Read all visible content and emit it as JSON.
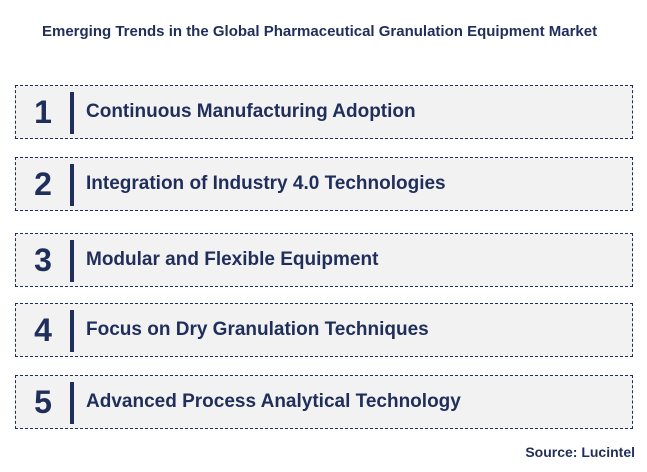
{
  "title": "Emerging Trends in the Global Pharmaceutical Granulation Equipment Market",
  "trends": [
    {
      "number": "1",
      "label": "Continuous Manufacturing Adoption"
    },
    {
      "number": "2",
      "label": "Integration of Industry 4.0 Technologies"
    },
    {
      "number": "3",
      "label": "Modular and Flexible Equipment"
    },
    {
      "number": "4",
      "label": "Focus on Dry Granulation Techniques"
    },
    {
      "number": "5",
      "label": "Advanced Process Analytical Technology"
    }
  ],
  "source": "Source: Lucintel",
  "colors": {
    "primary": "#1f2e5a",
    "row_background": "#f2f2f2"
  }
}
